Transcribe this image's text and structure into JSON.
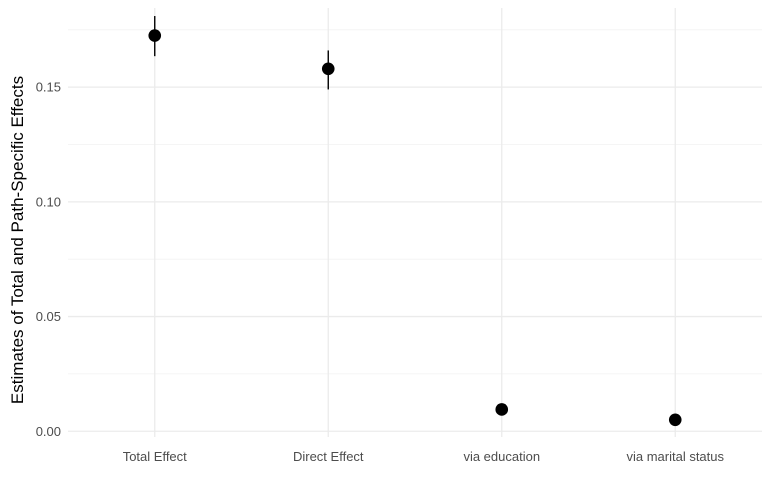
{
  "chart_data": {
    "type": "scatter",
    "title": "",
    "xlabel": "",
    "ylabel": "Estimates of Total and Path-Specific Effects",
    "categories": [
      "Total Effect",
      "Direct Effect",
      "via education",
      "via marital status"
    ],
    "series": [
      {
        "values": [
          0.1725,
          0.158,
          0.0095,
          0.005
        ],
        "lower": [
          0.1635,
          0.149,
          0.0085,
          0.004
        ],
        "upper": [
          0.181,
          0.166,
          0.0105,
          0.006
        ]
      }
    ],
    "yticks": [
      0.0,
      0.05,
      0.1,
      0.15
    ],
    "ytick_labels": [
      "0.00",
      "0.05",
      "0.10",
      "0.15"
    ],
    "ylim": [
      -0.0025,
      0.1845
    ],
    "grid": true,
    "legend": "none"
  }
}
